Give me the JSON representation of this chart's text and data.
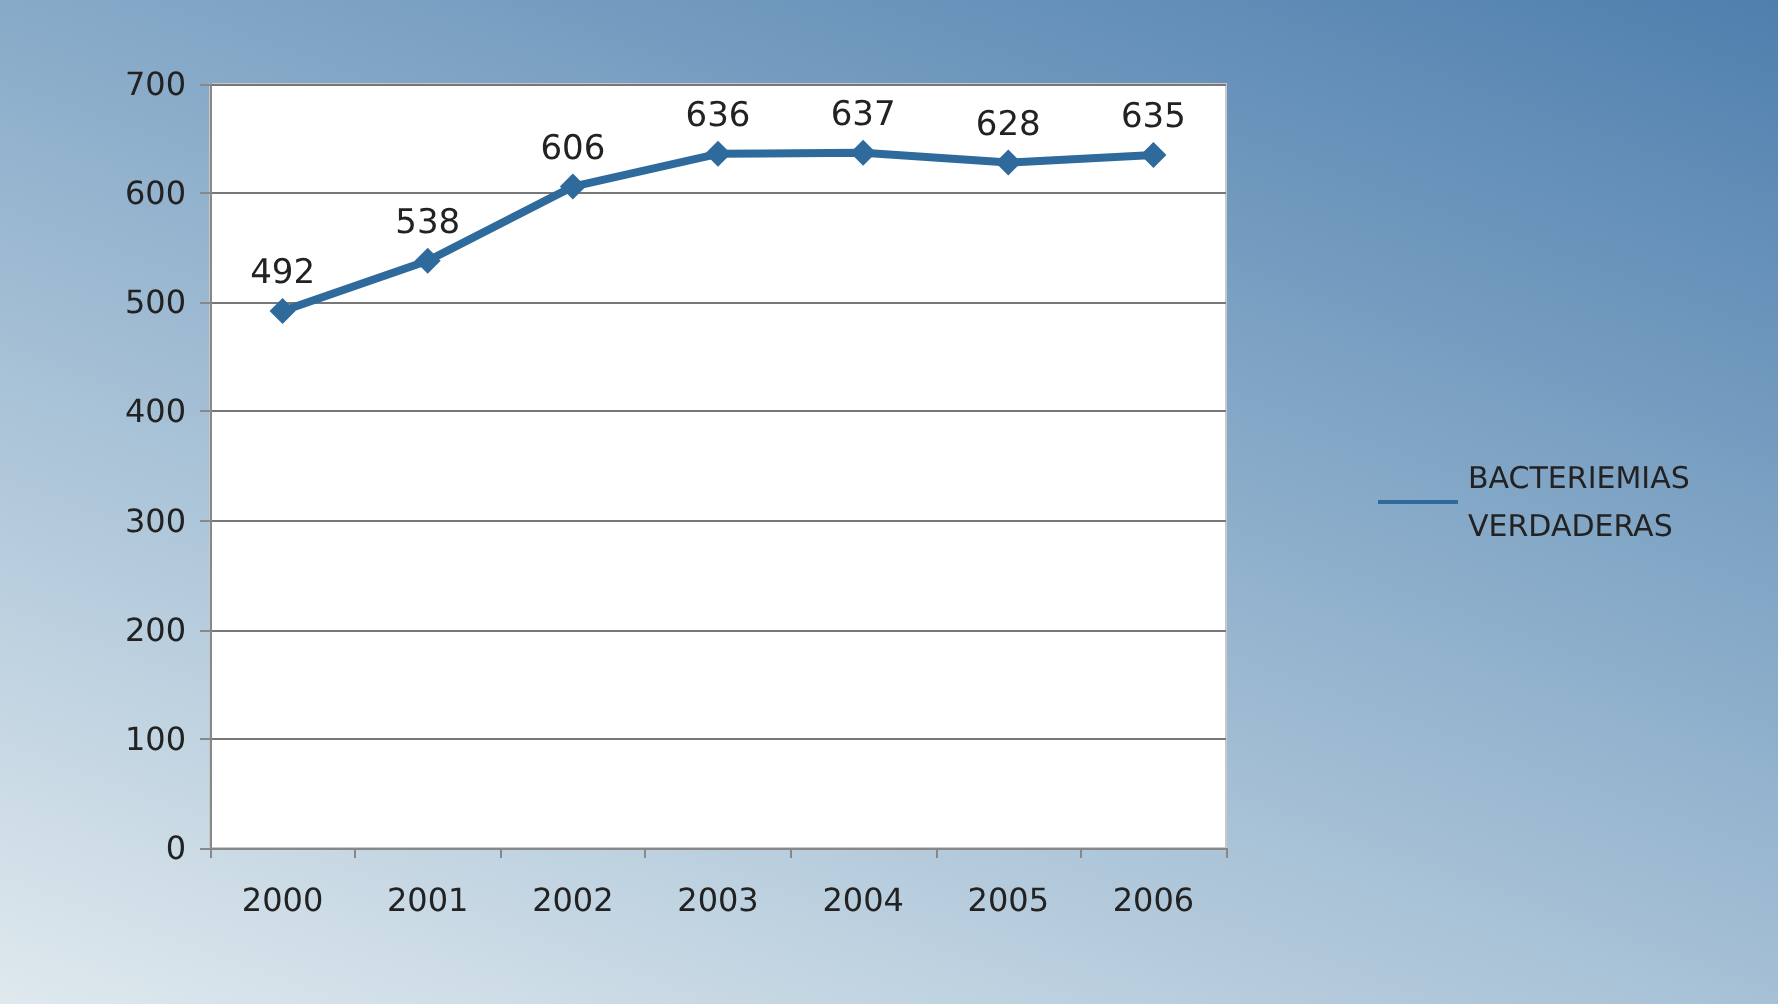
{
  "chart_data": {
    "type": "line",
    "categories": [
      "2000",
      "2001",
      "2002",
      "2003",
      "2004",
      "2005",
      "2006"
    ],
    "series": [
      {
        "name": "BACTERIEMIAS VERDADERAS",
        "color": "#2f6a9c",
        "values": [
          492,
          538,
          606,
          636,
          637,
          628,
          635
        ]
      }
    ],
    "ylim": [
      0,
      700
    ],
    "yticks": [
      0,
      100,
      200,
      300,
      400,
      500,
      600,
      700
    ],
    "grid": "y",
    "legend": "right",
    "marker": "diamond",
    "line_style": "solid",
    "data_labels": true
  }
}
